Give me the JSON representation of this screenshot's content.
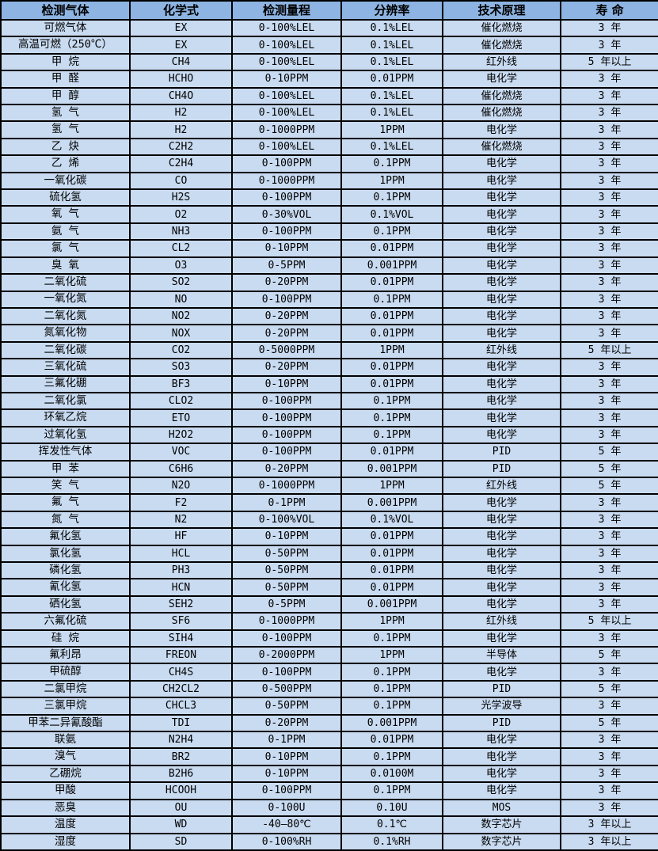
{
  "colors": {
    "header_bg": "#8DB4E2",
    "row_bg": "#C9DBF1",
    "border": "#000000",
    "text": "#000000"
  },
  "table": {
    "columns": [
      "检测气体",
      "化学式",
      "检测量程",
      "分辨率",
      "技术原理",
      "寿 命"
    ],
    "rows": [
      [
        "可燃气体",
        "EX",
        "0-100%LEL",
        "0.1%LEL",
        "催化燃烧",
        "3 年"
      ],
      [
        "高温可燃（250℃）",
        "EX",
        "0-100%LEL",
        "0.1%LEL",
        "催化燃烧",
        "3 年"
      ],
      [
        "甲 烷",
        "CH4",
        "0-100%LEL",
        "0.1%LEL",
        "红外线",
        "5 年以上"
      ],
      [
        "甲 醛",
        "HCHO",
        "0-10PPM",
        "0.01PPM",
        "电化学",
        "3 年"
      ],
      [
        "甲 醇",
        "CH4O",
        "0-100%LEL",
        "0.1%LEL",
        "催化燃烧",
        "3 年"
      ],
      [
        "氢 气",
        "H2",
        "0-100%LEL",
        "0.1%LEL",
        "催化燃烧",
        "3 年"
      ],
      [
        "氢 气",
        "H2",
        "0-1000PPM",
        "1PPM",
        "电化学",
        "3 年"
      ],
      [
        "乙 炔",
        "C2H2",
        "0-100%LEL",
        "0.1%LEL",
        "催化燃烧",
        "3 年"
      ],
      [
        "乙 烯",
        "C2H4",
        "0-100PPM",
        "0.1PPM",
        "电化学",
        "3 年"
      ],
      [
        "一氧化碳",
        "CO",
        "0-1000PPM",
        "1PPM",
        "电化学",
        "3 年"
      ],
      [
        "硫化氢",
        "H2S",
        "0-100PPM",
        "0.1PPM",
        "电化学",
        "3 年"
      ],
      [
        "氧 气",
        "O2",
        "0-30%VOL",
        "0.1%VOL",
        "电化学",
        "3 年"
      ],
      [
        "氨 气",
        "NH3",
        "0-100PPM",
        "0.1PPM",
        "电化学",
        "3 年"
      ],
      [
        "氯 气",
        "CL2",
        "0-10PPM",
        "0.01PPM",
        "电化学",
        "3 年"
      ],
      [
        "臭 氧",
        "O3",
        "0-5PPM",
        "0.001PPM",
        "电化学",
        "3 年"
      ],
      [
        "二氧化硫",
        "SO2",
        "0-20PPM",
        "0.01PPM",
        "电化学",
        "3 年"
      ],
      [
        "一氧化氮",
        "NO",
        "0-100PPM",
        "0.1PPM",
        "电化学",
        "3 年"
      ],
      [
        "二氧化氮",
        "NO2",
        "0-20PPM",
        "0.01PPM",
        "电化学",
        "3 年"
      ],
      [
        "氮氧化物",
        "NOX",
        "0-20PPM",
        "0.01PPM",
        "电化学",
        "3 年"
      ],
      [
        "二氧化碳",
        "CO2",
        "0-5000PPM",
        "1PPM",
        "红外线",
        "5 年以上"
      ],
      [
        "三氧化硫",
        "SO3",
        "0-20PPM",
        "0.01PPM",
        "电化学",
        "3 年"
      ],
      [
        "三氟化硼",
        "BF3",
        "0-10PPM",
        "0.01PPM",
        "电化学",
        "3 年"
      ],
      [
        "二氧化氯",
        "CLO2",
        "0-100PPM",
        "0.1PPM",
        "电化学",
        "3 年"
      ],
      [
        "环氧乙烷",
        "ETO",
        "0-100PPM",
        "0.1PPM",
        "电化学",
        "3 年"
      ],
      [
        "过氧化氢",
        "H2O2",
        "0-100PPM",
        "0.1PPM",
        "电化学",
        "3 年"
      ],
      [
        "挥发性气体",
        "VOC",
        "0-100PPM",
        "0.01PPM",
        "PID",
        "5 年"
      ],
      [
        "甲 苯",
        "C6H6",
        "0-20PPM",
        "0.001PPM",
        "PID",
        "5 年"
      ],
      [
        "笑 气",
        "N2O",
        "0-1000PPM",
        "1PPM",
        "红外线",
        "5 年"
      ],
      [
        "氟 气",
        "F2",
        "0-1PPM",
        "0.001PPM",
        "电化学",
        "3 年"
      ],
      [
        "氮 气",
        "N2",
        "0-100%VOL",
        "0.1%VOL",
        "电化学",
        "3 年"
      ],
      [
        "氟化氢",
        "HF",
        "0-10PPM",
        "0.01PPM",
        "电化学",
        "3 年"
      ],
      [
        "氯化氢",
        "HCL",
        "0-50PPM",
        "0.01PPM",
        "电化学",
        "3 年"
      ],
      [
        "磷化氢",
        "PH3",
        "0-50PPM",
        "0.01PPM",
        "电化学",
        "3 年"
      ],
      [
        "氰化氢",
        "HCN",
        "0-50PPM",
        "0.01PPM",
        "电化学",
        "3 年"
      ],
      [
        "硒化氢",
        "SEH2",
        "0-5PPM",
        "0.001PPM",
        "电化学",
        "3 年"
      ],
      [
        "六氟化硫",
        "SF6",
        "0-1000PPM",
        "1PPM",
        "红外线",
        "5 年以上"
      ],
      [
        "硅 烷",
        "SIH4",
        "0-100PPM",
        "0.1PPM",
        "电化学",
        "3 年"
      ],
      [
        "氟利昂",
        "FREON",
        "0-2000PPM",
        "1PPM",
        "半导体",
        "5 年"
      ],
      [
        "甲硫醇",
        "CH4S",
        "0-100PPM",
        "0.1PPM",
        "电化学",
        "3 年"
      ],
      [
        "二氯甲烷",
        "CH2CL2",
        "0-500PPM",
        "0.1PPM",
        "PID",
        "5 年"
      ],
      [
        "三氯甲烷",
        "CHCL3",
        "0-50PPM",
        "0.1PPM",
        "光学波导",
        "3 年"
      ],
      [
        "甲苯二异氰酸酯",
        "TDI",
        "0-20PPM",
        "0.001PPM",
        "PID",
        "5 年"
      ],
      [
        "联氨",
        "N2H4",
        "0-1PPM",
        "0.01PPM",
        "电化学",
        "3 年"
      ],
      [
        "溴气",
        "BR2",
        "0-10PPM",
        "0.1PPM",
        "电化学",
        "3 年"
      ],
      [
        "乙硼烷",
        "B2H6",
        "0-10PPM",
        "0.0100M",
        "电化学",
        "3 年"
      ],
      [
        "甲酸",
        "HCOOH",
        "0-100PPM",
        "0.1PPM",
        "电化学",
        "3 年"
      ],
      [
        "恶臭",
        "OU",
        "0-100U",
        "0.10U",
        "MOS",
        "3 年"
      ],
      [
        "温度",
        "WD",
        "-40—80℃",
        "0.1℃",
        "数字芯片",
        "3 年以上"
      ],
      [
        "湿度",
        "SD",
        "0-100%RH",
        "0.1%RH",
        "数字芯片",
        "3 年以上"
      ]
    ]
  }
}
